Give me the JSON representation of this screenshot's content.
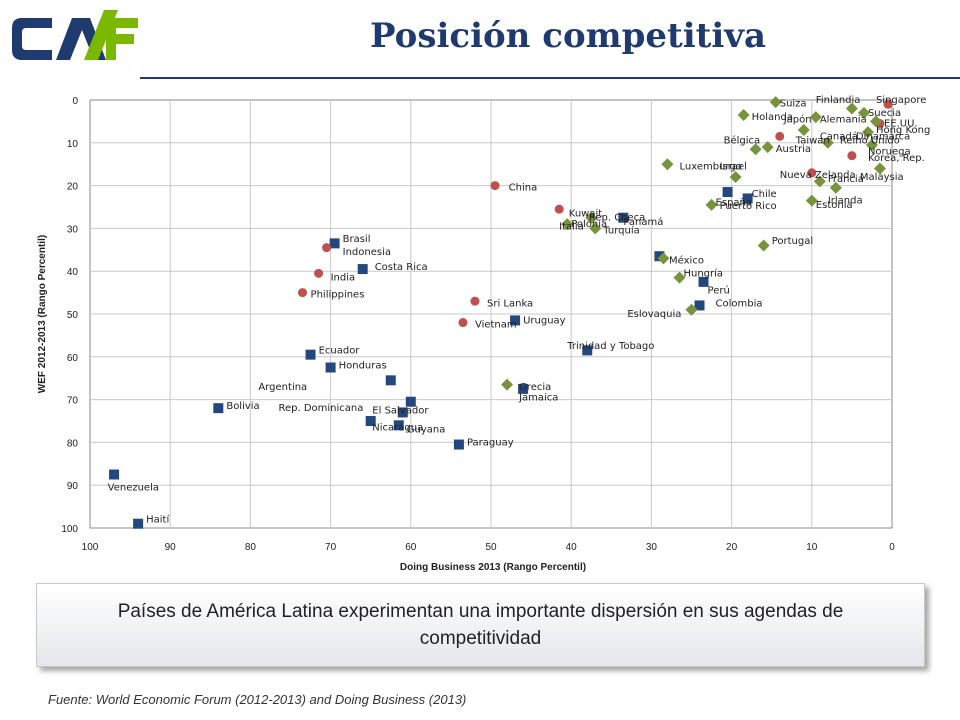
{
  "header": {
    "title": "Posición competitiva",
    "logo_text": "CAF"
  },
  "callout_text": "Países de América Latina experimentan una importante dispersión en sus agendas de competitividad",
  "source": "Fuente: World Economic Forum (2012-2013) and Doing Business (2013)",
  "colors": {
    "latam": "#24487e",
    "asia": "#c0504d",
    "oecd": "#77933c",
    "title": "#1f3a6e",
    "logo_blue": "#1f3a6e",
    "logo_green": "#7ab800"
  },
  "chart_data": {
    "type": "scatter",
    "xlabel": "Doing Business 2013 (Rango Percentil)",
    "ylabel": "WEF 2012-2013 (Rango Percentil)",
    "xlim": [
      100,
      0
    ],
    "ylim": [
      0,
      100
    ],
    "x_reversed": true,
    "y_reversed": true,
    "grid": true,
    "xticks": [
      100,
      90,
      80,
      70,
      60,
      50,
      40,
      30,
      20,
      10,
      0
    ],
    "yticks": [
      0,
      10,
      20,
      30,
      40,
      50,
      60,
      70,
      80,
      90,
      100
    ],
    "series": [
      {
        "marker": "square",
        "color": "#24487e",
        "points": [
          {
            "x": 69.5,
            "y": 33.5
          },
          {
            "x": 66,
            "y": 39.5
          },
          {
            "x": 72.5,
            "y": 59.5
          },
          {
            "x": 70,
            "y": 62.5
          },
          {
            "x": 62.5,
            "y": 65.5
          },
          {
            "x": 84,
            "y": 72
          },
          {
            "x": 65,
            "y": 75
          },
          {
            "x": 61,
            "y": 73
          },
          {
            "x": 60,
            "y": 70.5
          },
          {
            "x": 61.5,
            "y": 76
          },
          {
            "x": 54,
            "y": 80.5
          },
          {
            "x": 97,
            "y": 87.5
          },
          {
            "x": 94,
            "y": 99
          },
          {
            "x": 47,
            "y": 51.5
          },
          {
            "x": 38,
            "y": 58.5
          },
          {
            "x": 46,
            "y": 67.5
          },
          {
            "x": 33.5,
            "y": 27.5
          },
          {
            "x": 29,
            "y": 36.5
          },
          {
            "x": 23.5,
            "y": 42.5
          },
          {
            "x": 24,
            "y": 48
          },
          {
            "x": 20.5,
            "y": 21.5
          },
          {
            "x": 18,
            "y": 23
          }
        ]
      },
      {
        "marker": "circle",
        "color": "#c0504d",
        "points": [
          {
            "x": 70.5,
            "y": 34.5
          },
          {
            "x": 71.5,
            "y": 40.5
          },
          {
            "x": 73.5,
            "y": 45
          },
          {
            "x": 49.5,
            "y": 20
          },
          {
            "x": 52,
            "y": 47
          },
          {
            "x": 53.5,
            "y": 52
          },
          {
            "x": 41.5,
            "y": 25.5
          },
          {
            "x": 0.5,
            "y": 1
          },
          {
            "x": 14,
            "y": 8.5
          },
          {
            "x": 5,
            "y": 13
          },
          {
            "x": 1.5,
            "y": 5.5
          },
          {
            "x": 10,
            "y": 17
          }
        ]
      },
      {
        "marker": "diamond",
        "color": "#77933c",
        "points": [
          {
            "x": 14.5,
            "y": 0.5
          },
          {
            "x": 5,
            "y": 2
          },
          {
            "x": 3.5,
            "y": 3
          },
          {
            "x": 18.5,
            "y": 3.5
          },
          {
            "x": 9.5,
            "y": 4
          },
          {
            "x": 2,
            "y": 5
          },
          {
            "x": 11,
            "y": 7
          },
          {
            "x": 3,
            "y": 7.5
          },
          {
            "x": 8,
            "y": 10
          },
          {
            "x": 2.5,
            "y": 10.5
          },
          {
            "x": 17,
            "y": 11.5
          },
          {
            "x": 15.5,
            "y": 11
          },
          {
            "x": 28,
            "y": 15
          },
          {
            "x": 19.5,
            "y": 18
          },
          {
            "x": 9,
            "y": 19
          },
          {
            "x": 1.5,
            "y": 16
          },
          {
            "x": 7,
            "y": 20.5
          },
          {
            "x": 22.5,
            "y": 24.5
          },
          {
            "x": 10,
            "y": 23.5
          },
          {
            "x": 37.5,
            "y": 27.5
          },
          {
            "x": 40.5,
            "y": 29
          },
          {
            "x": 37,
            "y": 30
          },
          {
            "x": 16,
            "y": 34
          },
          {
            "x": 28.5,
            "y": 37
          },
          {
            "x": 26.5,
            "y": 41.5
          },
          {
            "x": 25,
            "y": 49
          },
          {
            "x": 48,
            "y": 66.5
          }
        ]
      }
    ],
    "labels": [
      {
        "text": "Brasil",
        "x": 68.5,
        "y": 32.5
      },
      {
        "text": "Indonesia",
        "x": 68.5,
        "y": 35.5
      },
      {
        "text": "Costa Rica",
        "x": 64.5,
        "y": 39
      },
      {
        "text": "India",
        "x": 70,
        "y": 41.5
      },
      {
        "text": "Philippines",
        "x": 72.5,
        "y": 45.5
      },
      {
        "text": "Ecuador",
        "x": 71.5,
        "y": 58.5
      },
      {
        "text": "Honduras",
        "x": 69,
        "y": 62
      },
      {
        "text": "Argentina",
        "x": 79,
        "y": 67
      },
      {
        "text": "Bolivia",
        "x": 83,
        "y": 71.5
      },
      {
        "text": "Rep. Dominicana",
        "x": 76.5,
        "y": 72
      },
      {
        "text": "El Salvador",
        "x": 64.8,
        "y": 72.5
      },
      {
        "text": "Nicaragua",
        "x": 64.8,
        "y": 76.5
      },
      {
        "text": "Guyana",
        "x": 60.5,
        "y": 77
      },
      {
        "text": "Paraguay",
        "x": 53,
        "y": 80
      },
      {
        "text": "Venezuela",
        "x": 97.8,
        "y": 90.5
      },
      {
        "text": "Haití",
        "x": 93,
        "y": 98
      },
      {
        "text": "China",
        "x": 47.8,
        "y": 20.5
      },
      {
        "text": "Sri Lanka",
        "x": 50.5,
        "y": 47.5
      },
      {
        "text": "Vietnam",
        "x": 52,
        "y": 52.5
      },
      {
        "text": "Uruguay",
        "x": 46,
        "y": 51.5
      },
      {
        "text": "Trinidad y Tobago",
        "x": 40.5,
        "y": 57.5
      },
      {
        "text": "Grecia",
        "x": 46.5,
        "y": 67
      },
      {
        "text": "Jamaica",
        "x": 46.5,
        "y": 69.5
      },
      {
        "text": "Kuwait",
        "x": 40.3,
        "y": 26.5
      },
      {
        "text": "Polonia",
        "x": 40,
        "y": 29
      },
      {
        "text": "Italia",
        "x": 41.5,
        "y": 29.5
      },
      {
        "text": "Rep. Checa",
        "x": 37.8,
        "y": 27.5
      },
      {
        "text": "Panamá",
        "x": 33.5,
        "y": 28.5
      },
      {
        "text": "Turquía",
        "x": 36,
        "y": 30.5
      },
      {
        "text": "México",
        "x": 27.8,
        "y": 37.5
      },
      {
        "text": "Hungría",
        "x": 26,
        "y": 40.5
      },
      {
        "text": "Perú",
        "x": 23,
        "y": 44.5
      },
      {
        "text": "Colombia",
        "x": 22,
        "y": 47.5
      },
      {
        "text": "Eslovaquia",
        "x": 33,
        "y": 50
      },
      {
        "text": "Portugal",
        "x": 15,
        "y": 33
      },
      {
        "text": "Luxemburgo",
        "x": 26.5,
        "y": 15.5
      },
      {
        "text": "Israel",
        "x": 21.5,
        "y": 15.5
      },
      {
        "text": "España",
        "x": 22,
        "y": 24
      },
      {
        "text": "Chile",
        "x": 17.5,
        "y": 22
      },
      {
        "text": "Puerto Rico",
        "x": 21.5,
        "y": 24.8
      },
      {
        "text": "Nueva Zelanda",
        "x": 14,
        "y": 17.5
      },
      {
        "text": "Francia",
        "x": 8,
        "y": 18.5
      },
      {
        "text": "Malaysia",
        "x": 4,
        "y": 18
      },
      {
        "text": "Irlanda",
        "x": 8,
        "y": 23.5
      },
      {
        "text": "Estonia",
        "x": 9.5,
        "y": 24.5
      },
      {
        "text": "Bélgica",
        "x": 21,
        "y": 9.5
      },
      {
        "text": "Austria",
        "x": 14.5,
        "y": 11.5
      },
      {
        "text": "Taiwan",
        "x": 12,
        "y": 9.5
      },
      {
        "text": "Holanda",
        "x": 17.5,
        "y": 4
      },
      {
        "text": "Suiza",
        "x": 14,
        "y": 0.8
      },
      {
        "text": "Japón",
        "x": 13.5,
        "y": 4.5
      },
      {
        "text": "Alemania",
        "x": 9,
        "y": 4.5
      },
      {
        "text": "Finlandia",
        "x": 9.5,
        "y": 0
      },
      {
        "text": "Singapore",
        "x": 2,
        "y": 0
      },
      {
        "text": "Suecia",
        "x": 3,
        "y": 3
      },
      {
        "text": "EE.UU.",
        "x": 1,
        "y": 5.5
      },
      {
        "text": "Hong Kong",
        "x": 2,
        "y": 7
      },
      {
        "text": "Canadá",
        "x": 9,
        "y": 8.5
      },
      {
        "text": "Dinamarca",
        "x": 4.5,
        "y": 8.5
      },
      {
        "text": "Reino Unido",
        "x": 6.5,
        "y": 9.5
      },
      {
        "text": "Noruega",
        "x": 3,
        "y": 12
      },
      {
        "text": "Korea, Rep.",
        "x": 3,
        "y": 13.5
      }
    ]
  }
}
